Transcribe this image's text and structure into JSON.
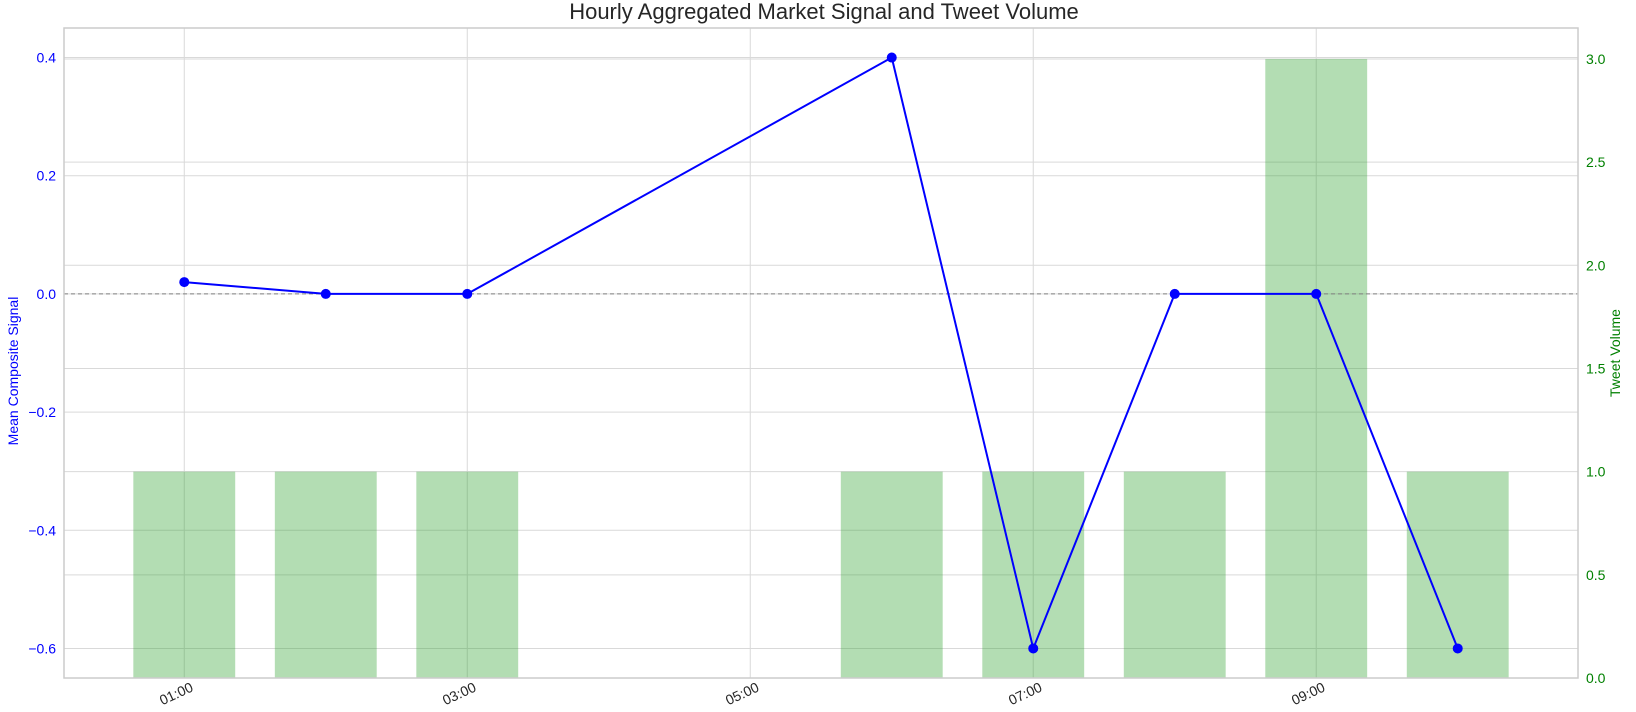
{
  "chart_data": {
    "type": "bar+line",
    "title": "Hourly Aggregated Market Signal and Tweet Volume",
    "x_ticks": [
      "01:00",
      "03:00",
      "05:00",
      "07:00",
      "09:00"
    ],
    "bars": {
      "name": "",
      "axis": "right",
      "hours": [
        1,
        2,
        3,
        6,
        7,
        8,
        9,
        10
      ],
      "values": [
        1,
        1,
        1,
        1,
        1,
        1,
        3,
        1
      ],
      "color": "#2ca02c"
    },
    "line": {
      "name": "",
      "axis": "left",
      "hours": [
        1,
        2,
        3,
        6,
        7,
        8,
        9,
        10
      ],
      "values": [
        0.02,
        0.0,
        0.0,
        0.4,
        -0.6,
        0.0,
        0.0,
        -0.6
      ],
      "color": "#0000ff"
    },
    "left_axis": {
      "label": "Mean Composite Signal",
      "range": [
        -0.65,
        0.45
      ],
      "ticks": [
        0.4,
        0.2,
        0.0,
        -0.2,
        -0.4,
        -0.6
      ],
      "tick_labels": [
        "0.4",
        "0.2",
        "0.0",
        "−0.2",
        "−0.4",
        "−0.6"
      ],
      "color": "#0000ff"
    },
    "right_axis": {
      "label": "Tweet Volume",
      "range": [
        0,
        3.15
      ],
      "ticks": [
        0.0,
        0.5,
        1.0,
        1.5,
        2.0,
        2.5,
        3.0
      ],
      "tick_labels": [
        "0.0",
        "0.5",
        "1.0",
        "1.5",
        "2.0",
        "2.5",
        "3.0"
      ],
      "color": "#008000"
    },
    "x_range": [
      0.15,
      10.85
    ],
    "reference_line": 0,
    "grid": true
  }
}
